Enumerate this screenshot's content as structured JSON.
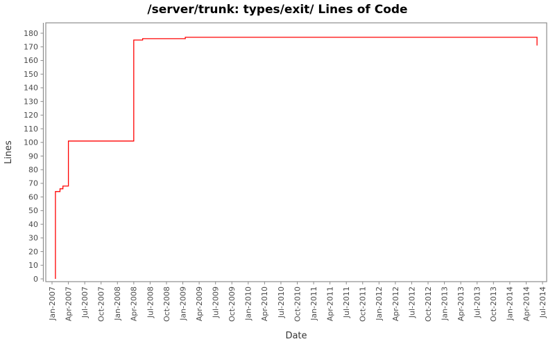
{
  "page": {
    "background": "#ffffff"
  },
  "chart_data": {
    "type": "line",
    "style": "step-after",
    "title": "/server/trunk: types/exit/ Lines of Code",
    "xlabel": "Date",
    "ylabel": "Lines",
    "legend": "none",
    "grid": false,
    "xlim": [
      "Jan-2007",
      "Jul-2014"
    ],
    "ylim": [
      0,
      187
    ],
    "y_tick_step": 10,
    "y_ticks": [
      0,
      10,
      20,
      30,
      40,
      50,
      60,
      70,
      80,
      90,
      100,
      110,
      120,
      130,
      140,
      150,
      160,
      170,
      180
    ],
    "x_tick_labels": [
      "Jan-2007",
      "Apr-2007",
      "Jul-2007",
      "Oct-2007",
      "Jan-2008",
      "Apr-2008",
      "Jul-2008",
      "Oct-2008",
      "Jan-2009",
      "Apr-2009",
      "Jul-2009",
      "Oct-2009",
      "Jan-2010",
      "Apr-2010",
      "Jul-2010",
      "Oct-2010",
      "Jan-2011",
      "Apr-2011",
      "Jul-2011",
      "Oct-2011",
      "Jan-2012",
      "Apr-2012",
      "Jul-2012",
      "Oct-2012",
      "Jan-2013",
      "Apr-2013",
      "Jul-2013",
      "Oct-2013",
      "Jan-2014",
      "Apr-2014",
      "Jul-2014"
    ],
    "series": [
      {
        "name": "Lines of Code",
        "color": "#ff0000",
        "points": [
          {
            "date": "2007-01-20",
            "lines": 0
          },
          {
            "date": "2007-01-20",
            "lines": 64
          },
          {
            "date": "2007-02-15",
            "lines": 66
          },
          {
            "date": "2007-03-01",
            "lines": 68
          },
          {
            "date": "2007-04-01",
            "lines": 101
          },
          {
            "date": "2008-04-01",
            "lines": 175
          },
          {
            "date": "2008-05-20",
            "lines": 176
          },
          {
            "date": "2009-01-15",
            "lines": 177
          },
          {
            "date": "2014-06-01",
            "lines": 171
          }
        ]
      }
    ],
    "colors": {
      "line": "#ff0000",
      "axis": "#8c8c8c",
      "tick_text": "#4a4a4a",
      "axis_label_text": "#333333",
      "title_text": "#000000",
      "plot_background": "#ffffff"
    }
  }
}
